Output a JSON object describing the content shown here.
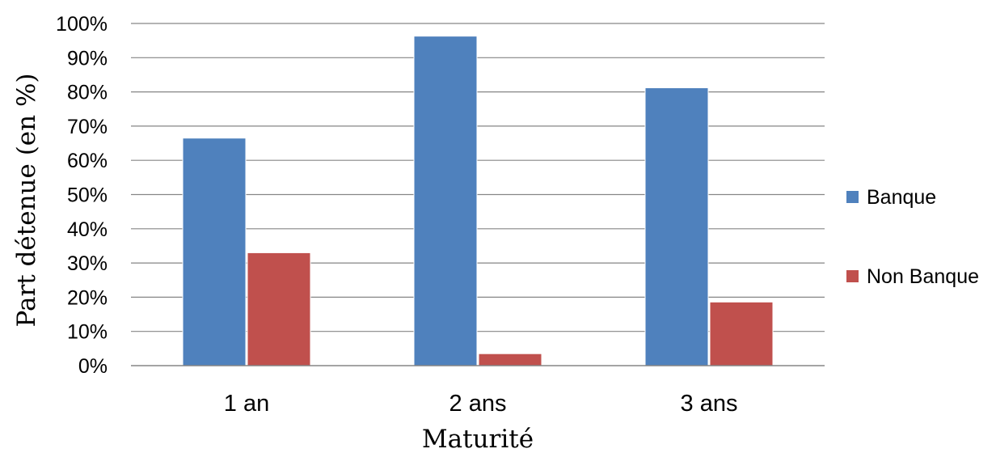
{
  "chart_data": {
    "type": "bar",
    "categories": [
      "1 an",
      "2 ans",
      "3 ans"
    ],
    "series": [
      {
        "name": "Banque",
        "values": [
          66.5,
          96.3,
          81.2
        ],
        "color": "#4F81BD"
      },
      {
        "name": "Non Banque",
        "values": [
          33.0,
          3.5,
          18.6
        ],
        "color": "#C0504D"
      }
    ],
    "title": "",
    "xlabel": "Maturité",
    "ylabel": "Part détenue (en %)",
    "ylim": [
      0,
      100
    ],
    "yticks": [
      0,
      10,
      20,
      30,
      40,
      50,
      60,
      70,
      80,
      90,
      100
    ],
    "ytick_format": "percent",
    "grid": true,
    "legend_position": "right"
  }
}
